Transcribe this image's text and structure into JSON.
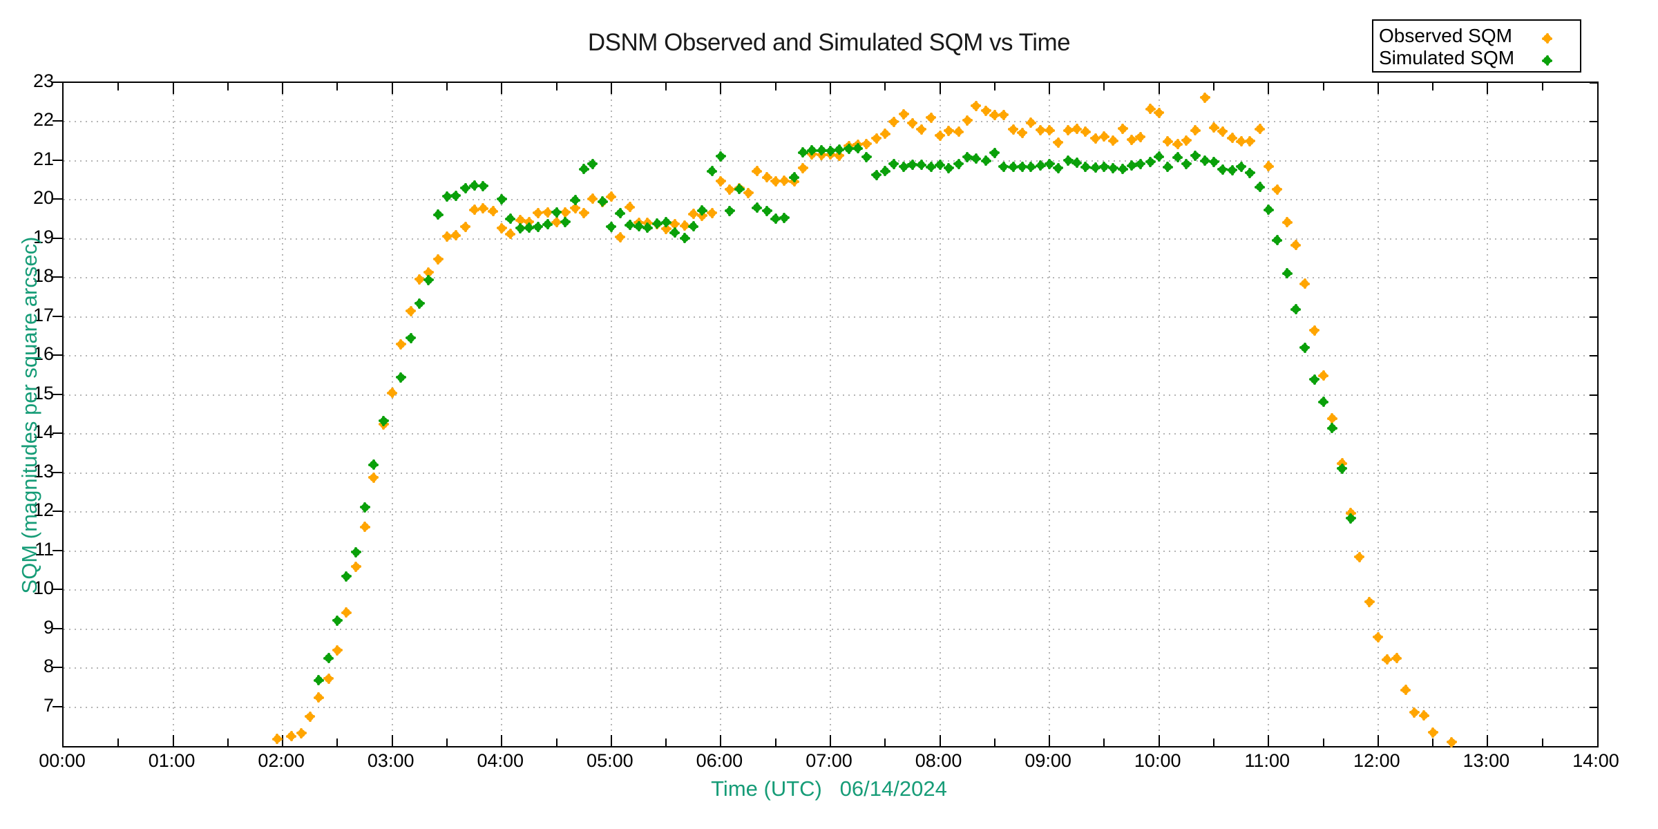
{
  "title": "DSNM Observed and Simulated SQM vs Time",
  "legend": {
    "observed_label": "Observed SQM",
    "simulated_label": "Simulated SQM"
  },
  "axes": {
    "x_label": "Time (UTC)   06/14/2024",
    "y_label": "SQM (magnitudes per square arcsec)",
    "x_tick_labels": [
      "00:00",
      "01:00",
      "02:00",
      "03:00",
      "04:00",
      "05:00",
      "06:00",
      "07:00",
      "08:00",
      "09:00",
      "10:00",
      "11:00",
      "12:00",
      "13:00",
      "14:00"
    ],
    "y_tick_labels": [
      "7",
      "8",
      "9",
      "10",
      "11",
      "12",
      "13",
      "14",
      "15",
      "16",
      "17",
      "18",
      "19",
      "20",
      "21",
      "22",
      "23"
    ]
  },
  "colors": {
    "observed": "#ffa500",
    "simulated": "#0aa00a",
    "axis_text": "#000000",
    "axis_title": "#169c77",
    "grid": "#b4b4b4"
  },
  "chart_data": {
    "type": "scatter",
    "title": "DSNM Observed and Simulated SQM vs Time",
    "xlabel": "Time (UTC)   06/14/2024",
    "ylabel": "SQM (magnitudes per square arcsec)",
    "x_range_hours": [
      0,
      14
    ],
    "y_range": [
      6,
      23
    ],
    "x_major_tick_hours": 1,
    "x_minor_tick_hours": 0.5,
    "grid": "dotted",
    "legend_position": "top-right",
    "series": [
      {
        "name": "Observed SQM",
        "color": "#ffa500",
        "points_time_hours_vs_sqm": [
          [
            1.95,
            6.18
          ],
          [
            2.08,
            6.25
          ],
          [
            2.17,
            6.33
          ],
          [
            2.25,
            6.76
          ],
          [
            2.33,
            7.24
          ],
          [
            2.42,
            7.73
          ],
          [
            2.5,
            8.46
          ],
          [
            2.58,
            9.42
          ],
          [
            2.67,
            10.6
          ],
          [
            2.75,
            11.62
          ],
          [
            2.83,
            12.88
          ],
          [
            2.92,
            14.25
          ],
          [
            3.0,
            15.05
          ],
          [
            3.08,
            16.3
          ],
          [
            3.17,
            17.15
          ],
          [
            3.25,
            17.97
          ],
          [
            3.33,
            18.14
          ],
          [
            3.42,
            18.48
          ],
          [
            3.5,
            19.06
          ],
          [
            3.58,
            19.09
          ],
          [
            3.67,
            19.31
          ],
          [
            3.75,
            19.75
          ],
          [
            3.83,
            19.78
          ],
          [
            3.92,
            19.71
          ],
          [
            4.0,
            19.28
          ],
          [
            4.08,
            19.13
          ],
          [
            4.17,
            19.48
          ],
          [
            4.25,
            19.44
          ],
          [
            4.33,
            19.67
          ],
          [
            4.42,
            19.68
          ],
          [
            4.5,
            19.43
          ],
          [
            4.58,
            19.68
          ],
          [
            4.67,
            19.79
          ],
          [
            4.75,
            19.67
          ],
          [
            4.83,
            20.03
          ],
          [
            4.92,
            19.95
          ],
          [
            5.0,
            20.08
          ],
          [
            5.08,
            19.05
          ],
          [
            5.17,
            19.82
          ],
          [
            5.25,
            19.42
          ],
          [
            5.33,
            19.41
          ],
          [
            5.42,
            19.38
          ],
          [
            5.5,
            19.26
          ],
          [
            5.58,
            19.38
          ],
          [
            5.67,
            19.34
          ],
          [
            5.75,
            19.64
          ],
          [
            5.83,
            19.6
          ],
          [
            5.92,
            19.67
          ],
          [
            6.0,
            20.48
          ],
          [
            6.08,
            20.27
          ],
          [
            6.17,
            20.3
          ],
          [
            6.25,
            20.18
          ],
          [
            6.33,
            20.74
          ],
          [
            6.42,
            20.58
          ],
          [
            6.5,
            20.48
          ],
          [
            6.58,
            20.49
          ],
          [
            6.67,
            20.47
          ],
          [
            6.75,
            20.82
          ],
          [
            6.83,
            21.17
          ],
          [
            6.92,
            21.15
          ],
          [
            7.0,
            21.16
          ],
          [
            7.08,
            21.14
          ],
          [
            7.17,
            21.38
          ],
          [
            7.25,
            21.42
          ],
          [
            7.33,
            21.44
          ],
          [
            7.42,
            21.58
          ],
          [
            7.5,
            21.69
          ],
          [
            7.58,
            22.0
          ],
          [
            7.67,
            22.2
          ],
          [
            7.75,
            21.97
          ],
          [
            7.83,
            21.81
          ],
          [
            7.92,
            22.11
          ],
          [
            8.0,
            21.65
          ],
          [
            8.08,
            21.77
          ],
          [
            8.17,
            21.75
          ],
          [
            8.25,
            22.04
          ],
          [
            8.33,
            22.41
          ],
          [
            8.42,
            22.29
          ],
          [
            8.5,
            22.17
          ],
          [
            8.58,
            22.18
          ],
          [
            8.67,
            21.81
          ],
          [
            8.75,
            21.72
          ],
          [
            8.83,
            21.98
          ],
          [
            8.92,
            21.79
          ],
          [
            9.0,
            21.78
          ],
          [
            9.08,
            21.47
          ],
          [
            9.17,
            21.78
          ],
          [
            9.25,
            21.82
          ],
          [
            9.33,
            21.75
          ],
          [
            9.42,
            21.58
          ],
          [
            9.5,
            21.62
          ],
          [
            9.58,
            21.52
          ],
          [
            9.67,
            21.83
          ],
          [
            9.75,
            21.54
          ],
          [
            9.83,
            21.61
          ],
          [
            9.92,
            22.33
          ],
          [
            10.0,
            22.23
          ],
          [
            10.08,
            21.5
          ],
          [
            10.17,
            21.43
          ],
          [
            10.25,
            21.53
          ],
          [
            10.33,
            21.78
          ],
          [
            10.42,
            22.62
          ],
          [
            10.5,
            21.85
          ],
          [
            10.58,
            21.76
          ],
          [
            10.67,
            21.59
          ],
          [
            10.75,
            21.5
          ],
          [
            10.83,
            21.51
          ],
          [
            10.92,
            21.82
          ],
          [
            11.0,
            20.86
          ],
          [
            11.08,
            20.27
          ],
          [
            11.17,
            19.43
          ],
          [
            11.25,
            18.84
          ],
          [
            11.33,
            17.85
          ],
          [
            11.42,
            16.66
          ],
          [
            11.5,
            15.5
          ],
          [
            11.58,
            14.4
          ],
          [
            11.67,
            13.25
          ],
          [
            11.75,
            11.97
          ],
          [
            11.83,
            10.85
          ],
          [
            11.92,
            9.7
          ],
          [
            12.0,
            8.79
          ],
          [
            12.08,
            8.22
          ],
          [
            12.17,
            8.25
          ],
          [
            12.25,
            7.44
          ],
          [
            12.33,
            6.86
          ],
          [
            12.42,
            6.78
          ],
          [
            12.5,
            6.35
          ],
          [
            12.67,
            6.1
          ]
        ]
      },
      {
        "name": "Simulated SQM",
        "color": "#0aa00a",
        "points_time_hours_vs_sqm": [
          [
            2.33,
            7.69
          ],
          [
            2.42,
            8.25
          ],
          [
            2.5,
            9.22
          ],
          [
            2.58,
            10.35
          ],
          [
            2.67,
            10.97
          ],
          [
            2.75,
            12.12
          ],
          [
            2.83,
            13.21
          ],
          [
            2.92,
            14.34
          ],
          [
            3.08,
            15.45
          ],
          [
            3.17,
            16.46
          ],
          [
            3.25,
            17.35
          ],
          [
            3.33,
            17.95
          ],
          [
            3.42,
            19.62
          ],
          [
            3.5,
            20.09
          ],
          [
            3.58,
            20.11
          ],
          [
            3.67,
            20.3
          ],
          [
            3.75,
            20.37
          ],
          [
            3.83,
            20.36
          ],
          [
            4.0,
            20.02
          ],
          [
            4.08,
            19.52
          ],
          [
            4.17,
            19.28
          ],
          [
            4.25,
            19.29
          ],
          [
            4.33,
            19.31
          ],
          [
            4.42,
            19.37
          ],
          [
            4.5,
            19.68
          ],
          [
            4.58,
            19.44
          ],
          [
            4.67,
            19.99
          ],
          [
            4.75,
            20.79
          ],
          [
            4.83,
            20.92
          ],
          [
            4.92,
            19.96
          ],
          [
            5.0,
            19.31
          ],
          [
            5.08,
            19.66
          ],
          [
            5.17,
            19.36
          ],
          [
            5.25,
            19.32
          ],
          [
            5.33,
            19.29
          ],
          [
            5.42,
            19.39
          ],
          [
            5.5,
            19.43
          ],
          [
            5.58,
            19.16
          ],
          [
            5.67,
            19.02
          ],
          [
            5.75,
            19.32
          ],
          [
            5.83,
            19.73
          ],
          [
            5.92,
            20.74
          ],
          [
            6.0,
            21.12
          ],
          [
            6.08,
            19.72
          ],
          [
            6.17,
            20.28
          ],
          [
            6.33,
            19.8
          ],
          [
            6.42,
            19.72
          ],
          [
            6.5,
            19.52
          ],
          [
            6.58,
            19.54
          ],
          [
            6.67,
            20.58
          ],
          [
            6.75,
            21.22
          ],
          [
            6.83,
            21.27
          ],
          [
            6.92,
            21.27
          ],
          [
            7.0,
            21.26
          ],
          [
            7.08,
            21.29
          ],
          [
            7.17,
            21.31
          ],
          [
            7.25,
            21.32
          ],
          [
            7.33,
            21.1
          ],
          [
            7.42,
            20.64
          ],
          [
            7.5,
            20.74
          ],
          [
            7.58,
            20.92
          ],
          [
            7.67,
            20.85
          ],
          [
            7.75,
            20.91
          ],
          [
            7.83,
            20.9
          ],
          [
            7.92,
            20.84
          ],
          [
            8.0,
            20.9
          ],
          [
            8.08,
            20.82
          ],
          [
            8.17,
            20.92
          ],
          [
            8.25,
            21.1
          ],
          [
            8.33,
            21.06
          ],
          [
            8.42,
            21.0
          ],
          [
            8.5,
            21.21
          ],
          [
            8.58,
            20.85
          ],
          [
            8.67,
            20.84
          ],
          [
            8.75,
            20.85
          ],
          [
            8.83,
            20.84
          ],
          [
            8.92,
            20.88
          ],
          [
            9.0,
            20.92
          ],
          [
            9.08,
            20.82
          ],
          [
            9.17,
            21.01
          ],
          [
            9.25,
            20.95
          ],
          [
            9.33,
            20.84
          ],
          [
            9.42,
            20.83
          ],
          [
            9.5,
            20.85
          ],
          [
            9.58,
            20.82
          ],
          [
            9.67,
            20.79
          ],
          [
            9.75,
            20.88
          ],
          [
            9.83,
            20.92
          ],
          [
            9.92,
            20.98
          ],
          [
            10.0,
            21.11
          ],
          [
            10.08,
            20.84
          ],
          [
            10.17,
            21.09
          ],
          [
            10.25,
            20.92
          ],
          [
            10.33,
            21.14
          ],
          [
            10.42,
            21.0
          ],
          [
            10.5,
            20.98
          ],
          [
            10.58,
            20.78
          ],
          [
            10.67,
            20.76
          ],
          [
            10.75,
            20.85
          ],
          [
            10.83,
            20.69
          ],
          [
            10.92,
            20.33
          ],
          [
            11.0,
            19.75
          ],
          [
            11.08,
            18.97
          ],
          [
            11.17,
            18.12
          ],
          [
            11.25,
            17.2
          ],
          [
            11.33,
            16.21
          ],
          [
            11.42,
            15.4
          ],
          [
            11.5,
            14.82
          ],
          [
            11.58,
            14.15
          ],
          [
            11.67,
            13.11
          ],
          [
            11.75,
            11.84
          ]
        ]
      }
    ]
  }
}
